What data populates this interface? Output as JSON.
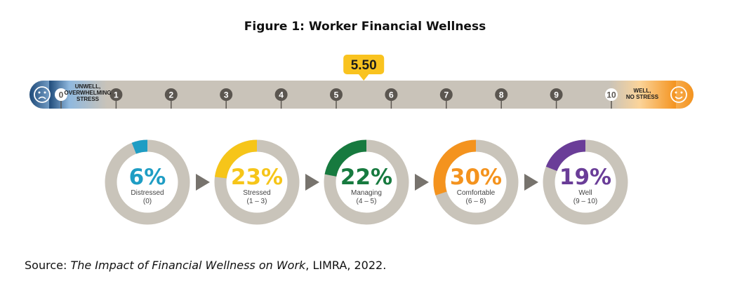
{
  "title": "Figure 1: Worker Financial Wellness",
  "source": {
    "prefix": "Source: ",
    "italic": "The Impact of Financial Wellness on Work",
    "suffix": ", LIMRA, 2022."
  },
  "colors": {
    "bar": "#c9c3b9",
    "dark_blue": "#1f4b7a",
    "orange": "#f4931e",
    "marker": "#f9c31f",
    "tick_dark": "#5b5650",
    "donut_bg": "#c9c4ba",
    "arrow": "#77736d"
  },
  "chart_data": [
    {
      "type": "scale",
      "min": 0,
      "max": 10,
      "ticks": [
        0,
        1,
        2,
        3,
        4,
        5,
        6,
        7,
        8,
        9,
        10
      ],
      "marker_value": 5.5,
      "marker_label": "5.50",
      "left_label": [
        "UNWELL,",
        "OVERWHELMING",
        "STRESS"
      ],
      "right_label": [
        "WELL,",
        "NO STRESS"
      ],
      "left_icon": "sad-face-icon",
      "right_icon": "happy-face-icon"
    },
    {
      "type": "pie",
      "variant": "donut",
      "segments": [
        {
          "percent": 6,
          "value_label": "6%",
          "name": "Distressed",
          "range": "(0)",
          "color": "#1e9dc4"
        },
        {
          "percent": 23,
          "value_label": "23%",
          "name": "Stressed",
          "range": "(1 – 3)",
          "color": "#f6c519"
        },
        {
          "percent": 22,
          "value_label": "22%",
          "name": "Managing",
          "range": "(4 – 5)",
          "color": "#177a3f"
        },
        {
          "percent": 30,
          "value_label": "30%",
          "name": "Comfortable",
          "range": "(6 – 8)",
          "color": "#f4931e"
        },
        {
          "percent": 19,
          "value_label": "19%",
          "name": "Well",
          "range": "(9 – 10)",
          "color": "#6a3d98"
        }
      ]
    }
  ]
}
